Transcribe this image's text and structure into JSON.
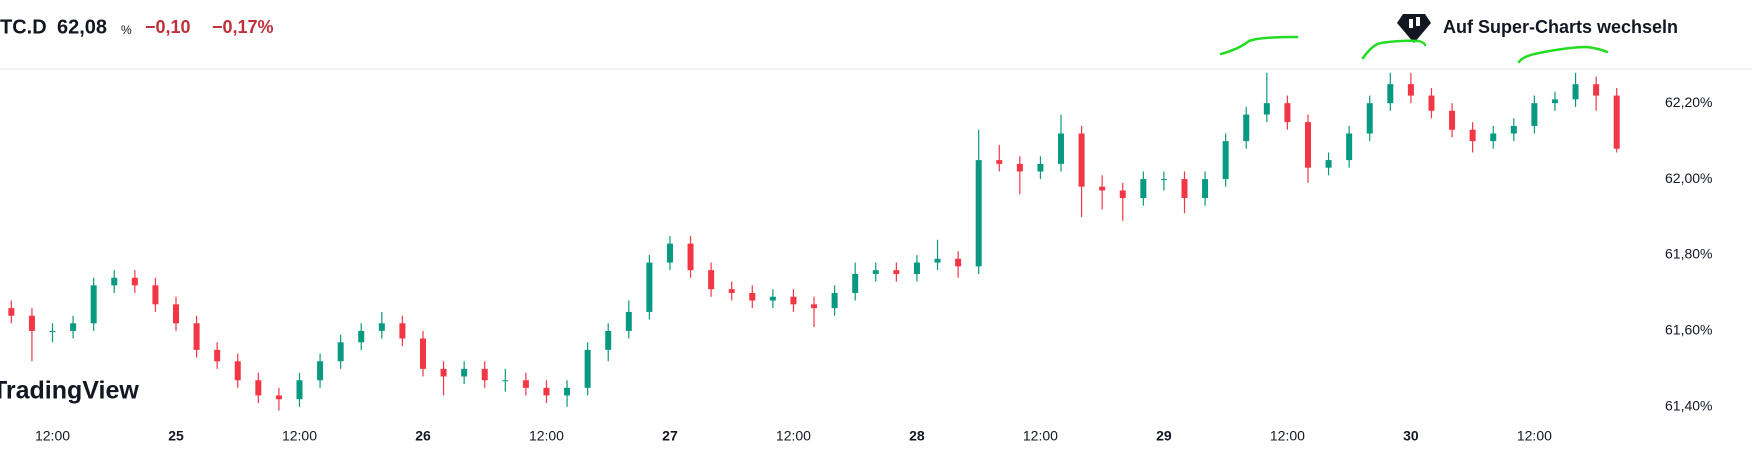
{
  "header": {
    "symbol": "TC.D",
    "price": "62,08",
    "unit": "%",
    "change": "−0,10",
    "change_percent": "−0,17%",
    "button": "Auf Super-Charts wechseln",
    "logo": "TradingView"
  },
  "chart_data": {
    "type": "candlestick",
    "categories": [
      null,
      null,
      "12:00",
      null,
      null,
      null,
      null,
      null,
      "25",
      null,
      null,
      null,
      null,
      null,
      "12:00",
      null,
      null,
      null,
      null,
      null,
      "26",
      null,
      null,
      null,
      null,
      null,
      "12:00",
      null,
      null,
      null,
      null,
      null,
      "27",
      null,
      null,
      null,
      null,
      null,
      "12:00",
      null,
      null,
      null,
      null,
      null,
      "28",
      null,
      null,
      null,
      null,
      null,
      "12:00",
      null,
      null,
      null,
      null,
      null,
      "29",
      null,
      null,
      null,
      null,
      null,
      "12:00",
      null,
      null,
      null,
      null,
      null,
      "30",
      null,
      null,
      null,
      null,
      null,
      "12:00",
      null,
      null,
      null,
      null
    ],
    "open": [
      61.66,
      61.64,
      61.6,
      61.6,
      61.62,
      61.72,
      61.74,
      61.72,
      61.67,
      61.62,
      61.55,
      61.52,
      61.47,
      61.43,
      61.42,
      61.47,
      61.52,
      61.57,
      61.6,
      61.62,
      61.58,
      61.5,
      61.48,
      61.5,
      61.47,
      61.47,
      61.45,
      61.43,
      61.45,
      61.55,
      61.6,
      61.65,
      61.78,
      61.83,
      61.76,
      61.71,
      61.7,
      61.68,
      61.69,
      61.67,
      61.66,
      61.7,
      61.75,
      61.76,
      61.75,
      61.78,
      61.79,
      61.77,
      62.05,
      62.04,
      62.02,
      62.04,
      62.12,
      61.98,
      61.97,
      61.95,
      62.0,
      62.0,
      61.95,
      62.0,
      62.1,
      62.17,
      62.2,
      62.15,
      62.03,
      62.05,
      62.12,
      62.2,
      62.25,
      62.22,
      62.18,
      62.13,
      62.1,
      62.12,
      62.14,
      62.2,
      62.21,
      62.25,
      62.22
    ],
    "high": [
      61.68,
      61.66,
      61.62,
      61.64,
      61.74,
      61.76,
      61.76,
      61.74,
      61.69,
      61.64,
      61.57,
      61.54,
      61.49,
      61.45,
      61.49,
      61.54,
      61.59,
      61.62,
      61.65,
      61.64,
      61.6,
      61.52,
      61.52,
      61.52,
      61.5,
      61.49,
      61.47,
      61.47,
      61.57,
      61.62,
      61.68,
      61.8,
      61.85,
      61.85,
      61.78,
      61.73,
      61.72,
      61.71,
      61.71,
      61.69,
      61.72,
      61.78,
      61.78,
      61.78,
      61.8,
      61.84,
      61.81,
      62.13,
      62.09,
      62.06,
      62.06,
      62.17,
      62.14,
      62.01,
      61.99,
      62.02,
      62.02,
      62.02,
      62.02,
      62.12,
      62.19,
      62.28,
      62.22,
      62.17,
      62.07,
      62.14,
      62.22,
      62.28,
      62.28,
      62.24,
      62.2,
      62.15,
      62.14,
      62.16,
      62.22,
      62.23,
      62.28,
      62.27,
      62.24
    ],
    "low": [
      61.62,
      61.52,
      61.57,
      61.58,
      61.6,
      61.7,
      61.7,
      61.65,
      61.6,
      61.53,
      61.5,
      61.45,
      61.41,
      61.39,
      61.4,
      61.45,
      61.5,
      61.55,
      61.58,
      61.56,
      61.48,
      61.43,
      61.46,
      61.45,
      61.44,
      61.43,
      61.41,
      61.4,
      61.43,
      61.52,
      61.58,
      61.63,
      61.76,
      61.74,
      61.69,
      61.68,
      61.66,
      61.66,
      61.65,
      61.61,
      61.64,
      61.68,
      61.73,
      61.73,
      61.73,
      61.76,
      61.74,
      61.75,
      62.02,
      61.96,
      62.0,
      62.02,
      61.9,
      61.92,
      61.89,
      61.93,
      61.97,
      61.91,
      61.93,
      61.98,
      62.08,
      62.15,
      62.13,
      61.99,
      62.01,
      62.03,
      62.1,
      62.18,
      62.2,
      62.16,
      62.11,
      62.07,
      62.08,
      62.1,
      62.12,
      62.18,
      62.19,
      62.18,
      62.07
    ],
    "close": [
      61.64,
      61.6,
      61.6,
      61.62,
      61.72,
      61.74,
      61.72,
      61.67,
      61.62,
      61.55,
      61.52,
      61.47,
      61.43,
      61.42,
      61.47,
      61.52,
      61.57,
      61.6,
      61.62,
      61.58,
      61.5,
      61.48,
      61.5,
      61.47,
      61.47,
      61.45,
      61.43,
      61.45,
      61.55,
      61.6,
      61.65,
      61.78,
      61.83,
      61.76,
      61.71,
      61.7,
      61.68,
      61.69,
      61.67,
      61.66,
      61.7,
      61.75,
      61.76,
      61.75,
      61.78,
      61.79,
      61.77,
      62.05,
      62.04,
      62.02,
      62.04,
      62.12,
      61.98,
      61.97,
      61.95,
      62.0,
      62.0,
      61.95,
      62.0,
      62.1,
      62.17,
      62.2,
      62.15,
      62.03,
      62.05,
      62.12,
      62.2,
      62.25,
      62.22,
      62.18,
      62.13,
      62.1,
      62.12,
      62.14,
      62.2,
      62.21,
      62.25,
      62.22,
      62.08
    ],
    "up_color": "#089981",
    "down_color": "#f23645",
    "ylim": [
      61.36,
      62.29
    ],
    "yticks": [
      {
        "value": 61.4,
        "label": "61,40%"
      },
      {
        "value": 61.6,
        "label": "61,60%"
      },
      {
        "value": 61.8,
        "label": "61,80%"
      },
      {
        "value": 62.0,
        "label": "62,00%"
      },
      {
        "value": 62.2,
        "label": "62,20%"
      }
    ]
  }
}
